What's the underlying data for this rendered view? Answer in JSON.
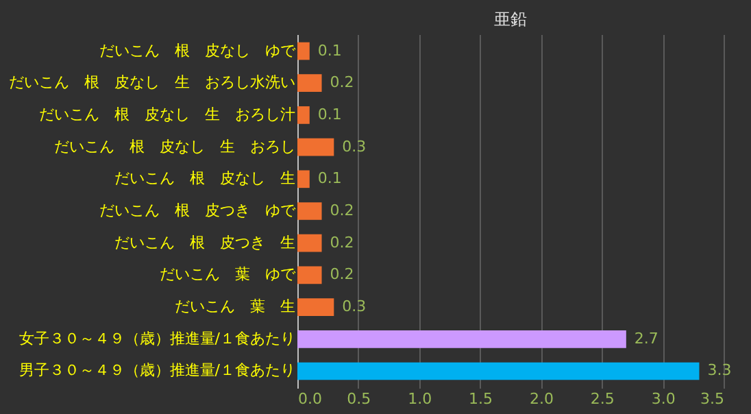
{
  "chart_data": {
    "type": "bar",
    "orientation": "horizontal",
    "title": "亜鉛",
    "categories": [
      "だいこん　根　皮なし　ゆで",
      "だいこん　根　皮なし　生　おろし水洗い",
      "だいこん　根　皮なし　生　おろし汁",
      "だいこん　根　皮なし　生　おろし",
      "だいこん　根　皮なし　生",
      "だいこん　根　皮つき　ゆで",
      "だいこん　根　皮つき　生",
      "だいこん　葉　ゆで",
      "だいこん　葉　生",
      "女子３０～４９（歳）推進量/１食あたり",
      "男子３０～４９（歳）推進量/１食あたり"
    ],
    "values": [
      0.1,
      0.2,
      0.1,
      0.3,
      0.1,
      0.2,
      0.2,
      0.2,
      0.3,
      2.7,
      3.3
    ],
    "colors": [
      "#f07030",
      "#f07030",
      "#f07030",
      "#f07030",
      "#f07030",
      "#f07030",
      "#f07030",
      "#f07030",
      "#f07030",
      "#cc99ff",
      "#00b0f0"
    ],
    "xlim": [
      0,
      3.5
    ],
    "xticks": [
      {
        "value": 0,
        "label": "0.0"
      },
      {
        "value": 0.5,
        "label": "0.5"
      },
      {
        "value": 1,
        "label": "1.0"
      },
      {
        "value": 1.5,
        "label": "1.5"
      },
      {
        "value": 2,
        "label": "2.0"
      },
      {
        "value": 2.5,
        "label": "2.5"
      },
      {
        "value": 3,
        "label": "3.0"
      },
      {
        "value": 3.5,
        "label": "3.5"
      }
    ],
    "grid": "x",
    "data_labels": true
  }
}
